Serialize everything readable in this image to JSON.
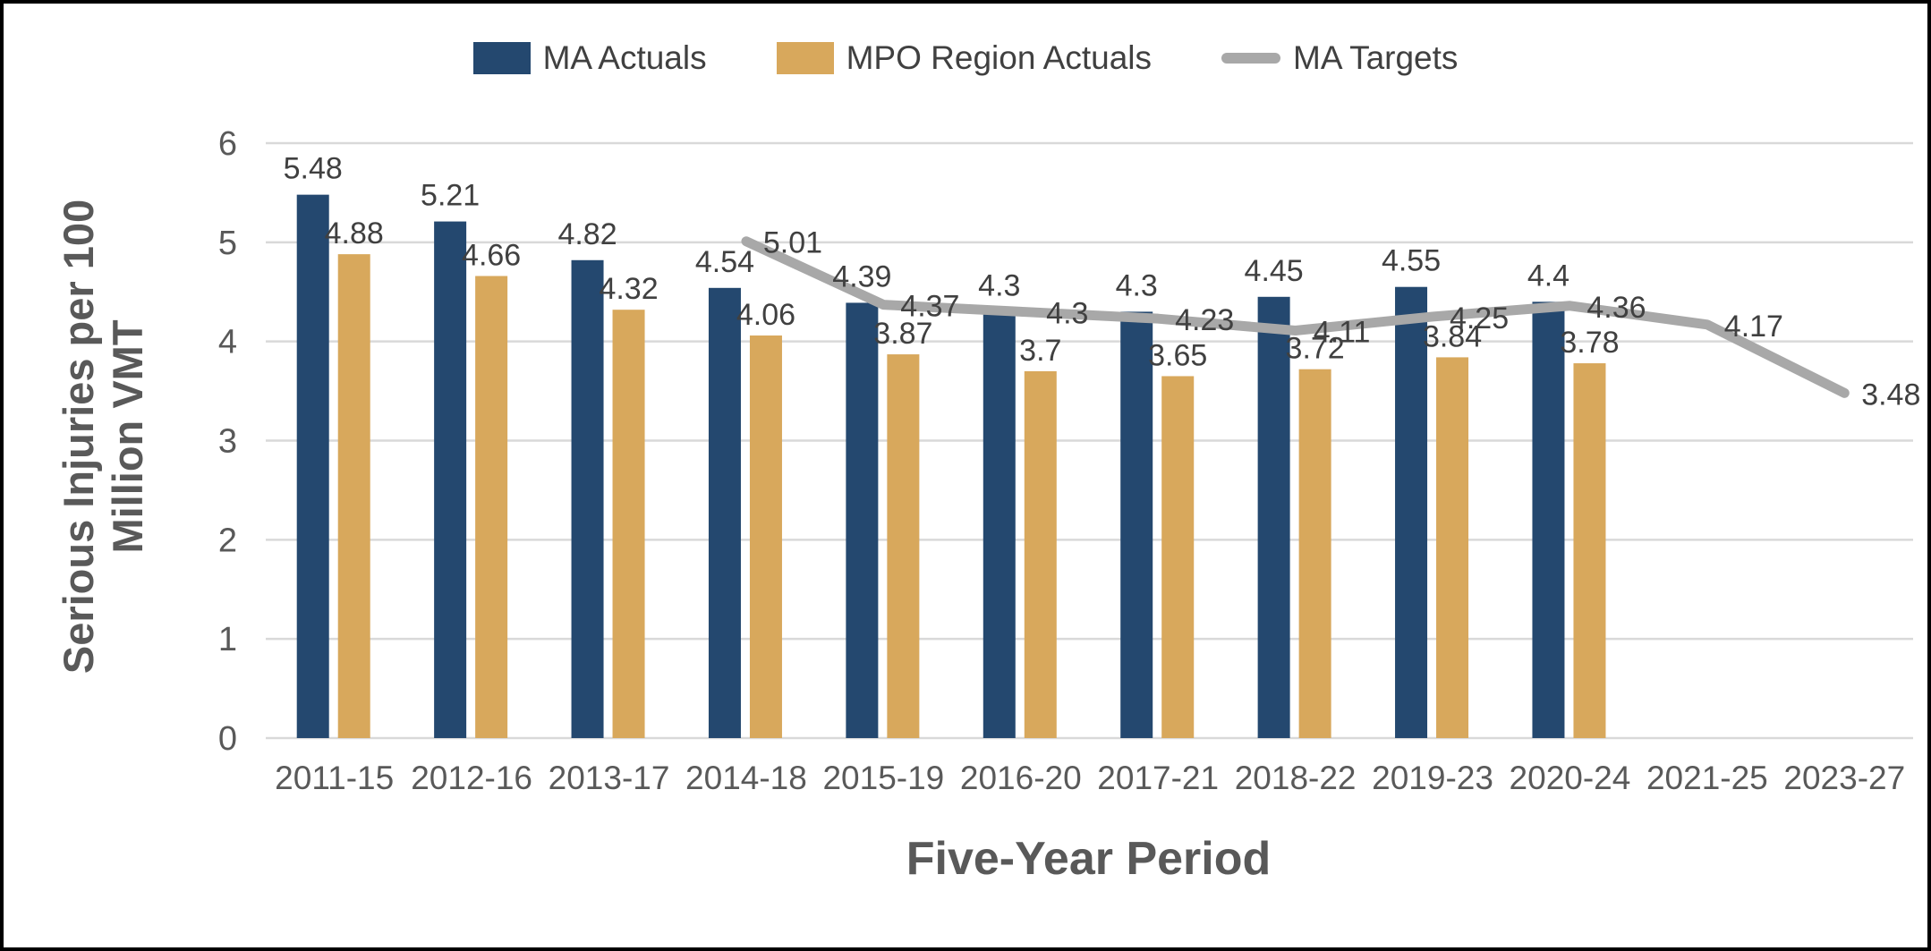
{
  "legend": [
    {
      "label": "MA Actuals",
      "swatch": "rect",
      "color": "#24486F"
    },
    {
      "label": "MPO Region Actuals",
      "swatch": "rect",
      "color": "#D8A85C"
    },
    {
      "label": "MA Targets",
      "swatch": "line",
      "color": "#A8A8A8"
    }
  ],
  "axis": {
    "x_title": "Five-Year Period",
    "y_title_line1": "Serious Injuries per 100",
    "y_title_line2": "Million VMT"
  },
  "colors": {
    "ma_actuals": "#24486F",
    "mpo_region_actuals": "#D8A85C",
    "ma_targets": "#A8A8A8",
    "gridline": "#D9D9D9",
    "data_label": "#404040",
    "tick_label": "#595959",
    "frame": "#000000"
  },
  "chart_data": {
    "type": "bar",
    "subtype": "clustered-bar-with-line",
    "categories": [
      "2011-15",
      "2012-16",
      "2013-17",
      "2014-18",
      "2015-19",
      "2016-20",
      "2017-21",
      "2018-22",
      "2019-23",
      "2020-24",
      "2021-25",
      "2023-27"
    ],
    "series": [
      {
        "name": "MA Actuals",
        "type": "bar",
        "color": "#24486F",
        "values": [
          5.48,
          5.21,
          4.82,
          4.54,
          4.39,
          4.3,
          4.3,
          4.45,
          4.55,
          4.4,
          null,
          null
        ]
      },
      {
        "name": "MPO Region Actuals",
        "type": "bar",
        "color": "#D8A85C",
        "values": [
          4.88,
          4.66,
          4.32,
          4.06,
          3.87,
          3.7,
          3.65,
          3.72,
          3.84,
          3.78,
          null,
          null
        ]
      },
      {
        "name": "MA Targets",
        "type": "line",
        "color": "#A8A8A8",
        "values": [
          null,
          null,
          null,
          5.01,
          4.37,
          4.3,
          4.23,
          4.11,
          4.25,
          4.36,
          4.17,
          3.48
        ]
      }
    ],
    "title": "",
    "xlabel": "Five-Year Period",
    "ylabel": "Serious Injuries per 100 Million VMT",
    "ylim": [
      0,
      6
    ],
    "yticks": [
      0,
      1,
      2,
      3,
      4,
      5,
      6
    ],
    "grid": true,
    "legend_position": "top",
    "data_labels": true
  }
}
